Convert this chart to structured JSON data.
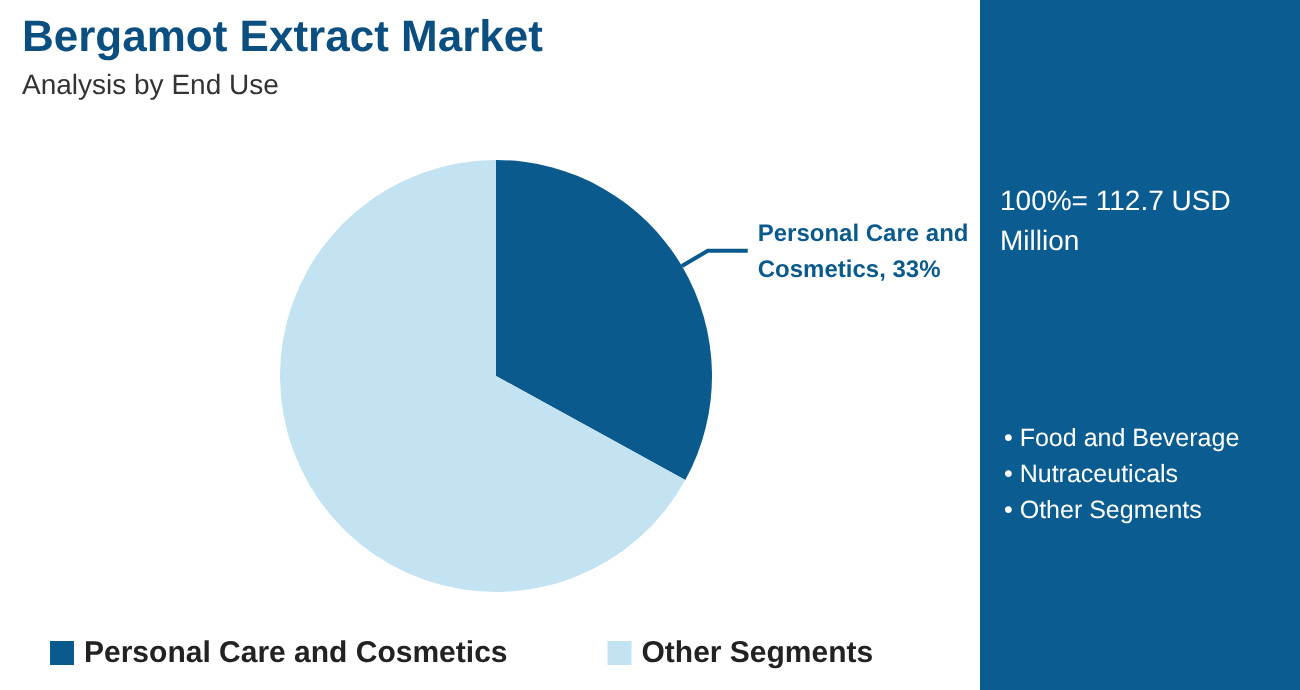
{
  "chart_data": {
    "type": "pie",
    "title": "Bergamot Extract Market",
    "subtitle": "Analysis by End Use",
    "categories": [
      "Personal Care and Cosmetics",
      "Other Segments"
    ],
    "values": [
      33,
      67
    ],
    "colors": [
      "#0b5a8e",
      "#c3e2f2"
    ],
    "value_labels": [
      "Personal Care and Cosmetics, 33%",
      null
    ],
    "legend": "bottom",
    "annotations": [
      "100%= 112.7 USD Million",
      "• Food and Beverage",
      "• Nutraceuticals",
      "• Other Segments"
    ]
  }
}
